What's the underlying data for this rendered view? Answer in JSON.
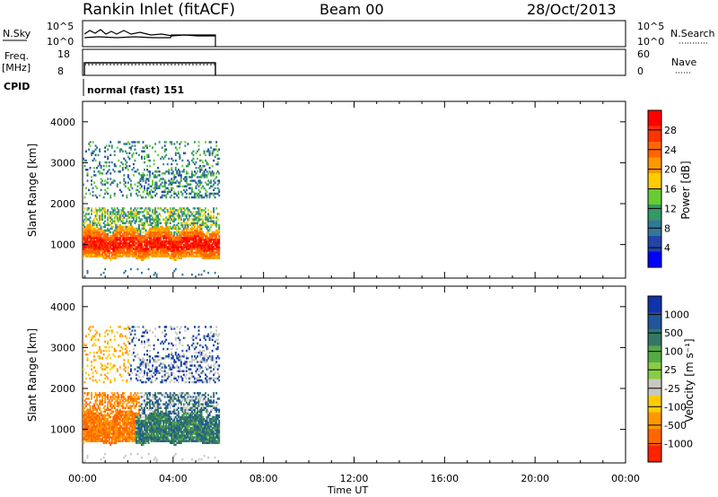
{
  "header": {
    "station": "Rankin Inlet (fitACF)",
    "beam": "Beam 00",
    "date": "28/Oct/2013"
  },
  "panels": {
    "nsky": {
      "left_label": "N.Sky",
      "right_label": "N.Search",
      "left_ticks": [
        "10^5",
        "10^0"
      ],
      "right_ticks": [
        "10^5",
        "10^0"
      ]
    },
    "freq": {
      "left_label_1": "Freq.",
      "left_label_2": "[MHz]",
      "right_label": "Nave",
      "left_ticks": [
        "18",
        "8"
      ],
      "right_ticks": [
        "60",
        "0"
      ]
    },
    "cpid": {
      "label": "CPID",
      "mode_text": "normal (fast) 151"
    }
  },
  "chart_data": [
    {
      "type": "heatmap",
      "title": "",
      "ylabel": "Slant Range [km]",
      "xlabel": "",
      "ylim": [
        180,
        4500
      ],
      "yticks": [
        "1000",
        "2000",
        "3000",
        "4000"
      ],
      "colorbar": {
        "label": "Power [dB]",
        "ticks": [
          "28",
          "24",
          "20",
          "16",
          "12",
          "8",
          "4"
        ],
        "colors": [
          "#ff0000",
          "#ff3300",
          "#ff6600",
          "#ff9900",
          "#ffcc00",
          "#66cc33",
          "#339966",
          "#337799",
          "#2244aa",
          "#0000ff"
        ]
      },
      "data_time_range_hours": [
        0,
        6
      ],
      "regions": [
        {
          "range_km": [
            650,
            1450
          ],
          "level": "high"
        },
        {
          "range_km": [
            1450,
            1900
          ],
          "level": "mid"
        },
        {
          "range_km": [
            2100,
            3500
          ],
          "level": "low-sparse"
        }
      ]
    },
    {
      "type": "heatmap",
      "title": "",
      "ylabel": "Slant Range [km]",
      "xlabel": "Time UT",
      "ylim": [
        180,
        4500
      ],
      "yticks": [
        "1000",
        "2000",
        "3000",
        "4000"
      ],
      "xticks": [
        "00:00",
        "04:00",
        "08:00",
        "12:00",
        "16:00",
        "20:00",
        "00:00"
      ],
      "xlim_hours": [
        0,
        24
      ],
      "colorbar": {
        "label": "Velocity [m s⁻¹]",
        "ticks": [
          "1000",
          "500",
          "100",
          "25",
          "-25",
          "-100",
          "-500",
          "-1000"
        ],
        "colors": [
          "#1133aa",
          "#225599",
          "#337766",
          "#55aa44",
          "#88cc44",
          "#c8c8c0",
          "#ffcc00",
          "#ff9900",
          "#ff6600",
          "#ff2200"
        ]
      },
      "data_time_range_hours": [
        0,
        6
      ]
    }
  ]
}
